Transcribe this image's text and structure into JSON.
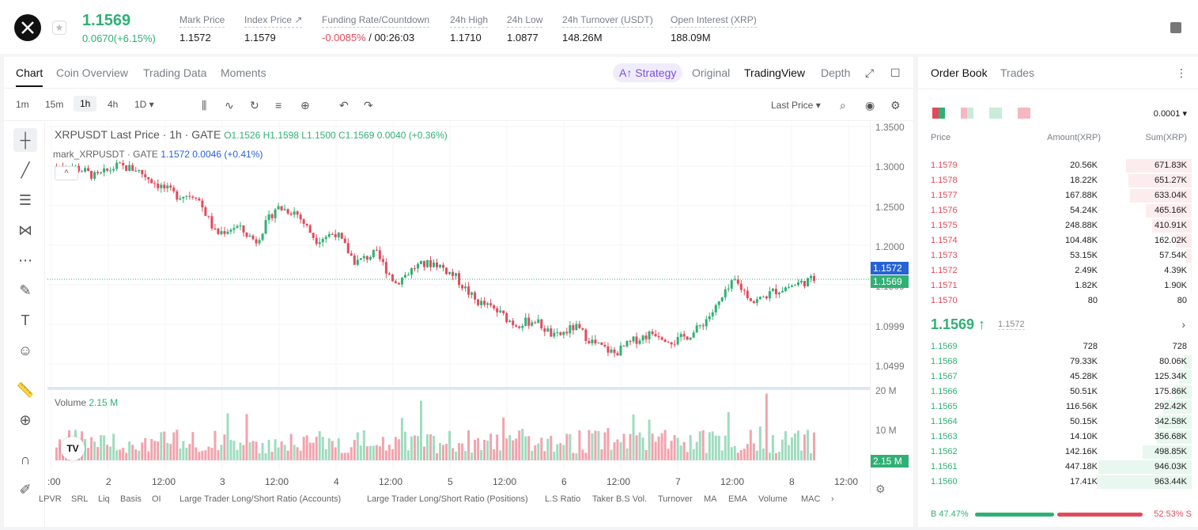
{
  "header": {
    "last_price": "1.1569",
    "change": "0.0670(+6.15%)",
    "stats": [
      {
        "label": "Mark Price",
        "value": "1.1572"
      },
      {
        "label": "Index Price ↗",
        "value": "1.1579"
      },
      {
        "label": "Funding Rate/Countdown",
        "value_neg": "-0.0085%",
        "value": " / 00:26:03"
      },
      {
        "label": "24h High",
        "value": "1.1710"
      },
      {
        "label": "24h Low",
        "value": "1.0877"
      },
      {
        "label": "24h Turnover (USDT)",
        "value": "148.26M"
      },
      {
        "label": "Open Interest (XRP)",
        "value": "188.09M"
      }
    ]
  },
  "chart_tabs": [
    "Chart",
    "Coin Overview",
    "Trading Data",
    "Moments"
  ],
  "view_tabs": {
    "strategy": "A↑ Strategy",
    "original": "Original",
    "tradingview": "TradingView",
    "depth": "Depth"
  },
  "timeframes": [
    "1m",
    "15m",
    "1h",
    "4h",
    "1D ▾"
  ],
  "last_price_select": "Last Price ▾",
  "legend": {
    "symbol": "XRPUSDT Last Price · 1h · GATE",
    "ohlc": "O1.1526 H1.1598 L1.1500 C1.1569 0.0040 (+0.36%)",
    "mark": "mark_XRPUSDT · GATE",
    "mark_vals": "1.1572  0.0046 (+0.41%)",
    "volume_label": "Volume",
    "volume_val": "2.15 M"
  },
  "yaxis": [
    "1.3500",
    "1.3000",
    "1.2500",
    "1.2000",
    "1.1500",
    "1.0999",
    "1.0499",
    "20 M",
    "10 M"
  ],
  "price_tags": {
    "mark": "1.1572",
    "last": "1.1569",
    "volume": "2.15 M"
  },
  "xaxis": [
    ":00",
    "2",
    "12:00",
    "3",
    "12:00",
    "4",
    "12:00",
    "5",
    "12:00",
    "6",
    "12:00",
    "7",
    "12:00",
    "8",
    "12:00"
  ],
  "indicators": [
    "LPVR",
    "SRL",
    "Liq",
    "Basis",
    "OI",
    "Large Trader Long/Short Ratio (Accounts)",
    "Large Trader Long/Short Ratio (Positions)",
    "L.S Ratio",
    "Taker B.S Vol.",
    "Turnover",
    "MA",
    "EMA",
    "Volume",
    "MAC"
  ],
  "chart_data": {
    "type": "candlestick",
    "x": [
      ":00",
      "2",
      "12:00",
      "3",
      "12:00",
      "4",
      "12:00",
      "5",
      "12:00",
      "6",
      "12:00",
      "7",
      "12:00",
      "8",
      "12:00"
    ],
    "close_path": [
      1.3,
      1.298,
      1.286,
      1.3,
      1.296,
      1.278,
      1.263,
      1.264,
      1.214,
      1.224,
      1.205,
      1.248,
      1.242,
      1.207,
      1.216,
      1.178,
      1.19,
      1.152,
      1.173,
      1.178,
      1.16,
      1.13,
      1.118,
      1.1,
      1.105,
      1.083,
      1.097,
      1.075,
      1.063,
      1.08,
      1.09,
      1.078,
      1.09,
      1.118,
      1.155,
      1.128,
      1.142,
      1.15,
      1.157
    ],
    "ylim": [
      1.0499,
      1.35
    ],
    "volume_ylim": [
      0,
      20
    ]
  },
  "orderbook": {
    "tabs": [
      "Order Book",
      "Trades"
    ],
    "precision": "0.0001 ▾",
    "headers": {
      "price": "Price",
      "amount": "Amount(XRP)",
      "sum": "Sum(XRP)"
    },
    "asks": [
      {
        "price": "1.1579",
        "amount": "20.56K",
        "sum": "671.83K",
        "depth": 0.69
      },
      {
        "price": "1.1578",
        "amount": "18.22K",
        "sum": "651.27K",
        "depth": 0.67
      },
      {
        "price": "1.1577",
        "amount": "167.88K",
        "sum": "633.04K",
        "depth": 0.65
      },
      {
        "price": "1.1576",
        "amount": "54.24K",
        "sum": "465.16K",
        "depth": 0.48
      },
      {
        "price": "1.1575",
        "amount": "248.88K",
        "sum": "410.91K",
        "depth": 0.42
      },
      {
        "price": "1.1574",
        "amount": "104.48K",
        "sum": "162.02K",
        "depth": 0.17
      },
      {
        "price": "1.1573",
        "amount": "53.15K",
        "sum": "57.54K",
        "depth": 0.06
      },
      {
        "price": "1.1572",
        "amount": "2.49K",
        "sum": "4.39K",
        "depth": 0.01
      },
      {
        "price": "1.1571",
        "amount": "1.82K",
        "sum": "1.90K",
        "depth": 0.005
      },
      {
        "price": "1.1570",
        "amount": "80",
        "sum": "80",
        "depth": 0.0
      }
    ],
    "mid_price": "1.1569 ↑",
    "mid_mark": "1.1572",
    "bids": [
      {
        "price": "1.1569",
        "amount": "728",
        "sum": "728",
        "depth": 0.0
      },
      {
        "price": "1.1568",
        "amount": "79.33K",
        "sum": "80.06K",
        "depth": 0.08
      },
      {
        "price": "1.1567",
        "amount": "45.28K",
        "sum": "125.34K",
        "depth": 0.13
      },
      {
        "price": "1.1566",
        "amount": "50.51K",
        "sum": "175.86K",
        "depth": 0.18
      },
      {
        "price": "1.1565",
        "amount": "116.56K",
        "sum": "292.42K",
        "depth": 0.3
      },
      {
        "price": "1.1564",
        "amount": "50.15K",
        "sum": "342.58K",
        "depth": 0.36
      },
      {
        "price": "1.1563",
        "amount": "14.10K",
        "sum": "356.68K",
        "depth": 0.37
      },
      {
        "price": "1.1562",
        "amount": "142.16K",
        "sum": "498.85K",
        "depth": 0.52
      },
      {
        "price": "1.1561",
        "amount": "447.18K",
        "sum": "946.03K",
        "depth": 0.98
      },
      {
        "price": "1.1560",
        "amount": "17.41K",
        "sum": "963.44K",
        "depth": 1.0
      }
    ],
    "buy_ratio": "B 47.47%",
    "sell_ratio": "52.53% S"
  },
  "colors": {
    "up": "#2fb074",
    "down": "#e24a5b",
    "accent": "#7b4fe0"
  }
}
